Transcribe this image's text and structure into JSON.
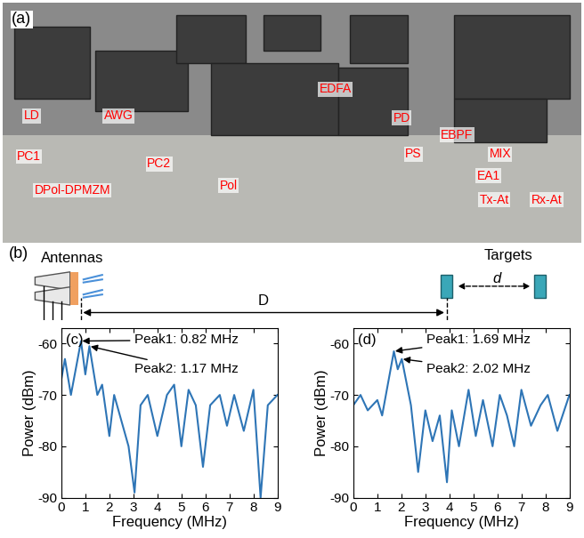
{
  "photo": {
    "label": "(a)",
    "tags": [
      "LD",
      "AWG",
      "PC1",
      "PC2",
      "Pol",
      "DPol-DPMZM",
      "EDFA",
      "PD",
      "EBPF",
      "PS",
      "MIX",
      "EA1",
      "Tx-At",
      "Rx-At"
    ]
  },
  "diagram": {
    "label": "(b)",
    "antennas": "Antennas",
    "targets": "Targets",
    "range": "D",
    "separation": "d"
  },
  "chart_data": [
    {
      "type": "line",
      "panel_label": "(c)",
      "x_label": "Frequency (MHz)",
      "y_label": "Power (dBm)",
      "color": "#2e75b6",
      "x": [
        0,
        0.15,
        0.4,
        0.6,
        0.82,
        1.0,
        1.17,
        1.5,
        1.7,
        2.0,
        2.2,
        2.5,
        2.8,
        3.05,
        3.3,
        3.6,
        4.0,
        4.4,
        4.7,
        5.0,
        5.3,
        5.6,
        5.9,
        6.2,
        6.6,
        6.9,
        7.2,
        7.6,
        8.0,
        8.3,
        8.6,
        9.0
      ],
      "values": [
        -67,
        -63,
        -70,
        -65,
        -59.5,
        -66,
        -60.5,
        -70,
        -68,
        -78,
        -70,
        -75,
        -80,
        -89,
        -72,
        -70,
        -78,
        -70,
        -68,
        -80,
        -69,
        -72,
        -84,
        -72,
        -70,
        -76,
        -70,
        -77,
        -69,
        -90,
        -72,
        -70
      ],
      "xlim": [
        0,
        9
      ],
      "ylim": [
        -90,
        -57
      ],
      "xticks": [
        0,
        1,
        2,
        3,
        4,
        5,
        6,
        7,
        8,
        9
      ],
      "yticks": [
        -90,
        -80,
        -70,
        -60
      ],
      "annotations": [
        {
          "text": "Peak1: 0.82 MHz",
          "x": 0.82,
          "y": -59.5
        },
        {
          "text": "Peak2: 1.17 MHz",
          "x": 1.17,
          "y": -60.5
        }
      ]
    },
    {
      "type": "line",
      "panel_label": "(d)",
      "x_label": "Frequency (MHz)",
      "y_label": "Power (dBm)",
      "color": "#2e75b6",
      "x": [
        0,
        0.3,
        0.6,
        1.0,
        1.2,
        1.69,
        1.85,
        2.02,
        2.4,
        2.7,
        3.0,
        3.3,
        3.6,
        3.9,
        4.1,
        4.4,
        4.8,
        5.1,
        5.4,
        5.8,
        6.1,
        6.4,
        6.7,
        7.0,
        7.4,
        7.8,
        8.1,
        8.5,
        9.0
      ],
      "values": [
        -72,
        -70,
        -73,
        -71,
        -74,
        -61.5,
        -65,
        -63,
        -72,
        -85,
        -73,
        -79,
        -74,
        -87,
        -73,
        -80,
        -69,
        -78,
        -71,
        -80,
        -70,
        -74,
        -80,
        -69,
        -76,
        -72,
        -70,
        -77,
        -70
      ],
      "xlim": [
        0,
        9
      ],
      "ylim": [
        -90,
        -57
      ],
      "xticks": [
        0,
        1,
        2,
        3,
        4,
        5,
        6,
        7,
        8,
        9
      ],
      "yticks": [
        -90,
        -80,
        -70,
        -60
      ],
      "annotations": [
        {
          "text": "Peak1: 1.69 MHz",
          "x": 1.69,
          "y": -61.5
        },
        {
          "text": "Peak2: 2.02 MHz",
          "x": 2.02,
          "y": -63
        }
      ]
    }
  ]
}
